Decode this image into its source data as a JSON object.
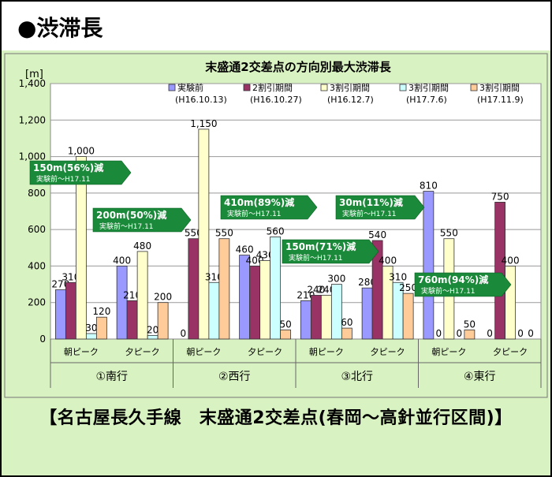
{
  "heading": "●渋滞長",
  "caption": "【名古屋長久手線　末盛通2交差点(春岡～高針並行区間)】",
  "chart_data": {
    "type": "bar",
    "title": "末盛通2交差点の方向別最大渋滞長",
    "ylabel": "[m]",
    "ylim": [
      0,
      1400
    ],
    "yticks": [
      "0",
      "200",
      "400",
      "600",
      "800",
      "1,000",
      "1,200",
      "1,400"
    ],
    "grid": true,
    "legend_position": "top-right",
    "groups": [
      "①南行",
      "②西行",
      "③北行",
      "④東行"
    ],
    "categories": [
      "朝ピーク",
      "夕ピーク",
      "朝ピーク",
      "夕ピーク",
      "朝ピーク",
      "夕ピーク",
      "朝ピーク",
      "夕ピーク"
    ],
    "series": [
      {
        "name": "実験前",
        "sub": "(H16.10.13)",
        "color": "#9999ff",
        "values": [
          270,
          400,
          0,
          460,
          210,
          280,
          810,
          0
        ],
        "labels": [
          "270",
          "400",
          "0",
          "460",
          "210",
          "280",
          "810",
          "0"
        ]
      },
      {
        "name": "2割引期間",
        "sub": "(H16.10.27)",
        "color": "#993366",
        "values": [
          310,
          210,
          550,
          400,
          240,
          540,
          0,
          750
        ],
        "labels": [
          "310",
          "210",
          "550",
          "400",
          "240",
          "540",
          "0",
          "750"
        ]
      },
      {
        "name": "3割引期間",
        "sub": "(H16.12.7)",
        "color": "#ffffcc",
        "values": [
          1000,
          480,
          1150,
          430,
          240,
          400,
          550,
          400
        ],
        "labels": [
          "1,000",
          "480",
          "1,150",
          "430",
          "240",
          "400",
          "550",
          "400"
        ]
      },
      {
        "name": "3割引期間",
        "sub": "(H17.7.6)",
        "color": "#ccffff",
        "values": [
          30,
          20,
          310,
          560,
          300,
          310,
          0,
          0
        ],
        "labels": [
          "30",
          "20",
          "310",
          "560",
          "300",
          "310",
          "0",
          "0"
        ]
      },
      {
        "name": "3割引期間",
        "sub": "(H17.11.9)",
        "color": "#ffcc99",
        "values": [
          120,
          200,
          550,
          50,
          60,
          250,
          50,
          0
        ],
        "labels": [
          "120",
          "200",
          "550",
          "50",
          "60",
          "250",
          "50",
          "0"
        ]
      }
    ],
    "annotations": [
      {
        "text": "150m(56%)減",
        "sub": "実験前～H17.11"
      },
      {
        "text": "200m(50%)減",
        "sub": "実験前～H17.11"
      },
      {
        "text": "410m(89%)減",
        "sub": "実験前～H17.11"
      },
      {
        "text": "150m(71%)減",
        "sub": "実験前～H17.11"
      },
      {
        "text": "30m(11%)減",
        "sub": "実験前～H17.11"
      },
      {
        "text": "760m(94%)減",
        "sub": "実験前～H17.11"
      }
    ],
    "colors": {
      "annotation": "#1a8a3a",
      "frame": "#d9f2c2",
      "plot": "#ffffff",
      "heading_bg": "#ffffff"
    }
  }
}
